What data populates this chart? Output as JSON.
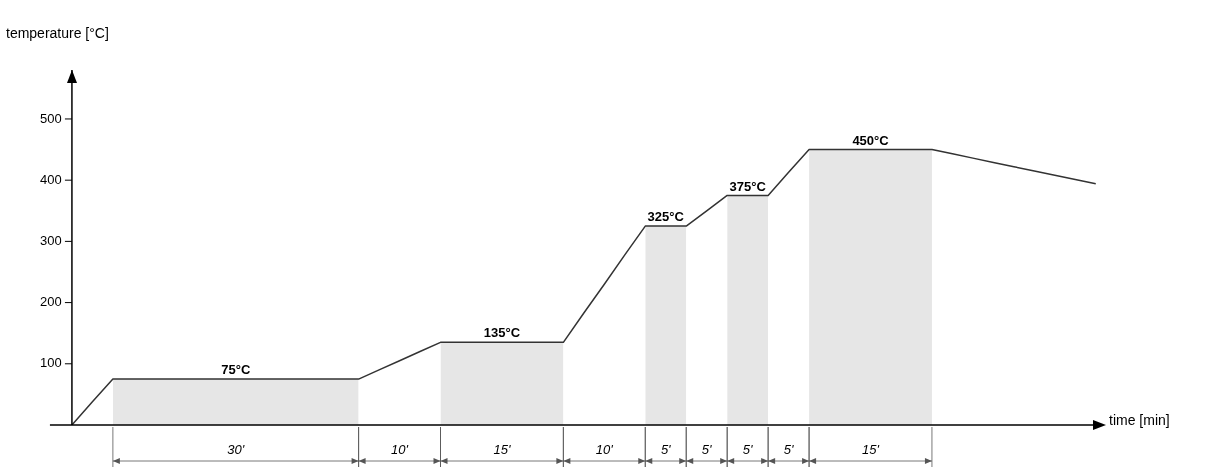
{
  "chart_data": {
    "type": "line",
    "xlabel": "time [min]",
    "ylabel": "temperature [°C]",
    "ylim": [
      0,
      580
    ],
    "yticks": [
      100,
      200,
      300,
      400,
      500
    ],
    "tick_labels": "y",
    "grid": false,
    "legend": false,
    "marker": "none",
    "line_style": "solid",
    "categories": [
      null,
      null,
      null,
      null,
      null,
      null,
      null,
      null,
      null,
      null,
      null,
      null,
      null,
      null,
      null,
      null,
      null,
      null,
      null,
      null,
      null,
      null,
      null,
      null,
      null,
      null,
      null,
      null,
      null,
      null,
      null,
      null,
      null,
      null,
      null,
      null,
      null,
      null,
      null,
      null,
      null,
      null,
      null,
      null,
      null,
      null,
      null,
      null,
      null,
      null,
      null
    ],
    "series": [
      {
        "type": "area",
        "color": "#e6e6e6",
        "values": [
          null,
          null,
          75,
          75,
          75,
          75,
          75,
          75,
          75,
          75,
          75,
          75,
          75,
          75,
          75,
          null,
          null,
          null,
          135,
          135,
          135,
          135,
          135,
          135,
          135,
          null,
          null,
          null,
          325,
          325,
          325,
          null,
          375,
          375,
          375,
          null,
          450,
          450,
          450,
          450,
          450,
          450,
          450,
          null,
          null,
          null,
          null,
          null,
          null,
          null,
          null
        ]
      },
      {
        "type": "line",
        "color": "#333333",
        "values": [
          0,
          38,
          75,
          75,
          75,
          75,
          75,
          75,
          75,
          75,
          75,
          75,
          75,
          75,
          75,
          90,
          105,
          120,
          135,
          135,
          135,
          135,
          135,
          135,
          135,
          183,
          230,
          278,
          325,
          325,
          325,
          350,
          375,
          375,
          375,
          413,
          450,
          450,
          450,
          450,
          450,
          450,
          450,
          443,
          436,
          429,
          422,
          415,
          408,
          401,
          394
        ],
        "value_labels": [
          null,
          null,
          null,
          null,
          null,
          null,
          null,
          null,
          "75°C",
          null,
          null,
          null,
          null,
          null,
          null,
          null,
          null,
          null,
          null,
          null,
          null,
          "135°C",
          null,
          null,
          null,
          null,
          null,
          null,
          null,
          "325°C",
          null,
          null,
          null,
          "375°C",
          null,
          null,
          null,
          null,
          null,
          "450°C",
          null,
          null,
          null,
          null,
          null,
          null,
          null,
          null,
          null,
          null,
          null
        ]
      }
    ],
    "annotations": [
      "30'",
      "10'",
      "15'",
      "10'",
      "5'",
      "5'",
      "5'",
      "5'",
      "15'"
    ]
  }
}
